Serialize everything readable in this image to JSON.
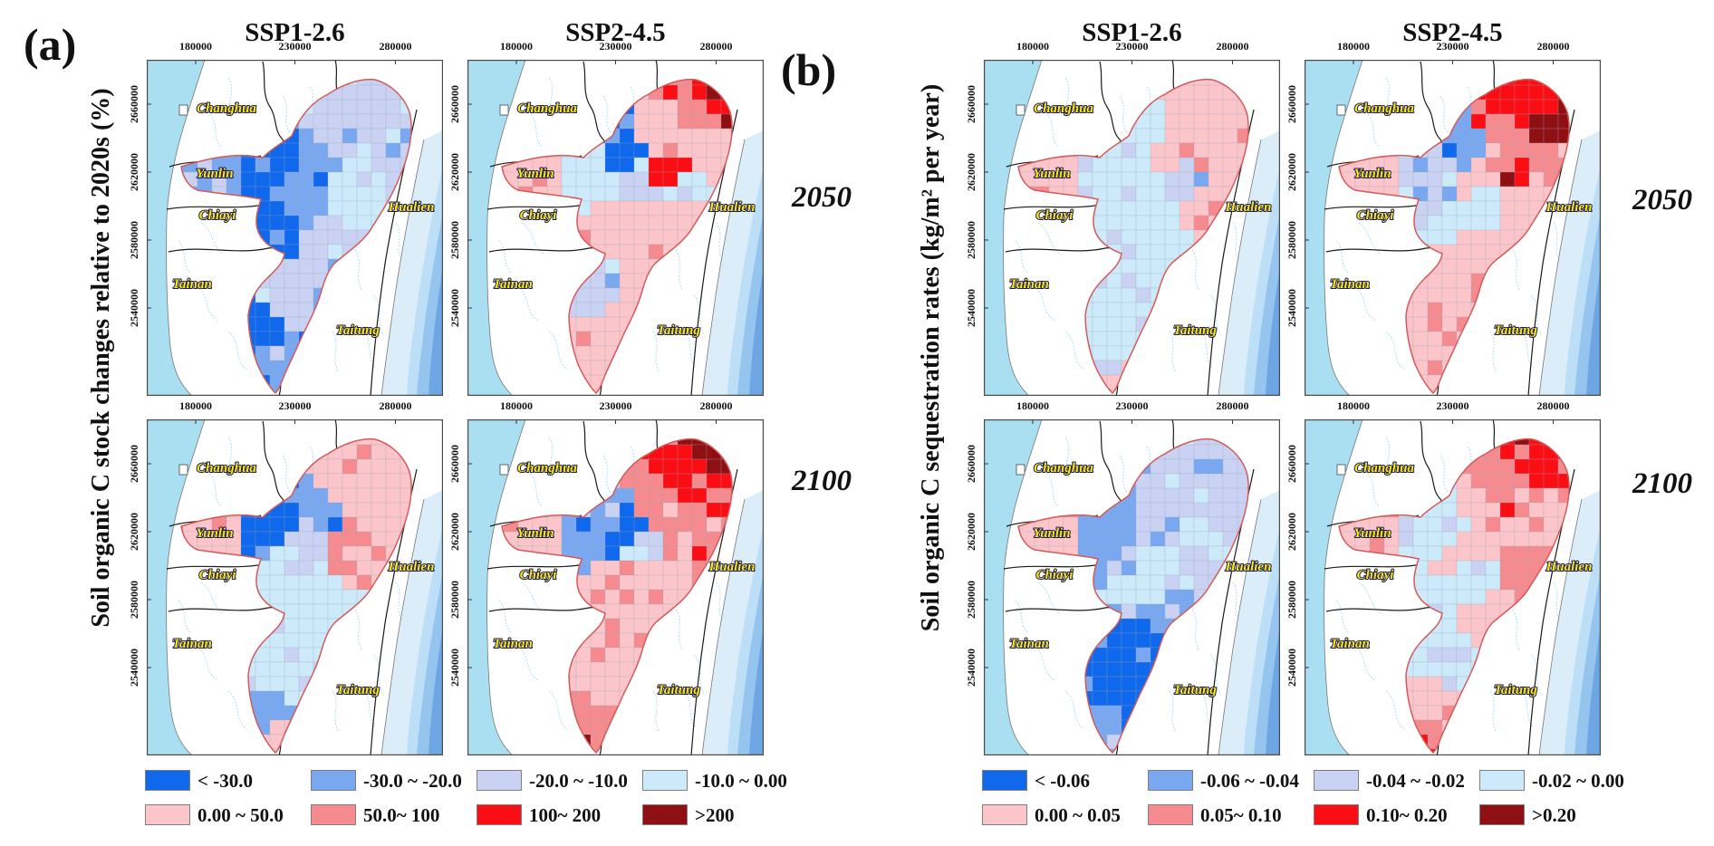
{
  "figure": {
    "panel_a": {
      "label": "(a)",
      "axis_title": "Soil organic C stock changes relative to 2020s (%)",
      "column_titles": [
        "SSP1-2.6",
        "SSP2-4.5"
      ],
      "row_labels": [
        "2050",
        "2100"
      ],
      "legend": [
        {
          "label": "< -30.0",
          "color": "#1068ec"
        },
        {
          "label": "-30.0 ~ -20.0",
          "color": "#79a8f0"
        },
        {
          "label": "-20.0 ~ -10.0",
          "color": "#c9d2f2"
        },
        {
          "label": "-10.0 ~ 0.00",
          "color": "#cdeafa"
        },
        {
          "label": "0.00 ~ 50.0",
          "color": "#fbc5ca"
        },
        {
          "label": "50.0~ 100",
          "color": "#f58b8f"
        },
        {
          "label": "100~ 200",
          "color": "#fb0e13"
        },
        {
          "label": ">200",
          "color": "#8e1013"
        }
      ]
    },
    "panel_b": {
      "label": "(b)",
      "axis_title": "Soil organic C sequestration rates (kg/m² per year)",
      "column_titles": [
        "SSP1-2.6",
        "SSP2-4.5"
      ],
      "row_labels": [
        "2050",
        "2100"
      ],
      "legend": [
        {
          "label": "< -0.06",
          "color": "#1068ec"
        },
        {
          "label": "-0.06 ~ -0.04",
          "color": "#79a8f0"
        },
        {
          "label": "-0.04 ~ -0.02",
          "color": "#c9d2f2"
        },
        {
          "label": "-0.02 ~ 0.00",
          "color": "#cdeafa"
        },
        {
          "label": "0.00 ~ 0.05",
          "color": "#fbc5ca"
        },
        {
          "label": "0.05~ 0.10",
          "color": "#f58b8f"
        },
        {
          "label": "0.10~ 0.20",
          "color": "#fb0e13"
        },
        {
          "label": ">0.20",
          "color": "#8e1013"
        }
      ]
    },
    "map_common": {
      "x_ticks": [
        "180000",
        "230000",
        "280000"
      ],
      "y_ticks": [
        "2660000",
        "2620000",
        "2580000",
        "2540000"
      ],
      "region_labels": [
        "Changhua",
        "Yunlin",
        "Chiayi",
        "Hualien",
        "Tainan",
        "Taitung"
      ]
    },
    "palette": [
      "#1068ec",
      "#79a8f0",
      "#c9d2f2",
      "#cdeafa",
      "#fbc5ca",
      "#f58b8f",
      "#fb0e13",
      "#8e1013"
    ],
    "colors": {
      "sea_west": "#a9dff1",
      "sea_east_bands": [
        "#dcedfa",
        "#bcdef6",
        "#95c5ef",
        "#6ea5e3"
      ],
      "river": "#8fd2f2",
      "county_boundary": "#1a1a1a",
      "watershed_outline": "#d45a5a",
      "region_label_fill": "#ffec00",
      "region_label_outline": "#16166b",
      "cell_border": "#9aa7b8",
      "frame": "#4a4a4a"
    },
    "maps": [
      {
        "panel": "a",
        "col": 0,
        "row": 0,
        "scenario": "SSP1-2.6",
        "year": "2050",
        "zones": [
          [
            60,
            128,
            1
          ],
          [
            150,
            118,
            0
          ],
          [
            135,
            178,
            0
          ],
          [
            185,
            118,
            1
          ],
          [
            215,
            88,
            2
          ],
          [
            248,
            48,
            2
          ],
          [
            268,
            108,
            2
          ],
          [
            238,
            158,
            3
          ],
          [
            205,
            198,
            2
          ],
          [
            195,
            245,
            2
          ],
          [
            160,
            270,
            2
          ],
          [
            138,
            300,
            0
          ],
          [
            142,
            345,
            1
          ],
          [
            172,
            140,
            1
          ],
          [
            230,
            130,
            3
          ]
        ]
      },
      {
        "panel": "a",
        "col": 1,
        "row": 0,
        "scenario": "SSP2-4.5",
        "year": "2050",
        "zones": [
          [
            60,
            128,
            4
          ],
          [
            148,
            118,
            3
          ],
          [
            166,
            106,
            0
          ],
          [
            188,
            130,
            2
          ],
          [
            220,
            88,
            4
          ],
          [
            252,
            50,
            5
          ],
          [
            264,
            44,
            6
          ],
          [
            266,
            112,
            4
          ],
          [
            232,
            168,
            4
          ],
          [
            198,
            248,
            4
          ],
          [
            148,
            298,
            4
          ],
          [
            134,
            262,
            2
          ],
          [
            242,
            140,
            3
          ],
          [
            224,
            124,
            6
          ],
          [
            142,
            350,
            4
          ],
          [
            180,
            180,
            4
          ]
        ]
      },
      {
        "panel": "a",
        "col": 0,
        "row": 1,
        "scenario": "SSP1-2.6",
        "year": "2100",
        "zones": [
          [
            60,
            128,
            4
          ],
          [
            150,
            114,
            0
          ],
          [
            176,
            130,
            2
          ],
          [
            196,
            114,
            1
          ],
          [
            230,
            80,
            4
          ],
          [
            258,
            44,
            4
          ],
          [
            270,
            110,
            4
          ],
          [
            240,
            160,
            4
          ],
          [
            205,
            200,
            3
          ],
          [
            190,
            250,
            3
          ],
          [
            152,
            282,
            3
          ],
          [
            130,
            320,
            1
          ],
          [
            146,
            352,
            4
          ],
          [
            162,
            176,
            3
          ],
          [
            216,
            140,
            5
          ]
        ]
      },
      {
        "panel": "a",
        "col": 1,
        "row": 1,
        "scenario": "SSP2-4.5",
        "year": "2100",
        "zones": [
          [
            60,
            128,
            4
          ],
          [
            150,
            115,
            1
          ],
          [
            170,
            125,
            0
          ],
          [
            186,
            142,
            2
          ],
          [
            216,
            94,
            5
          ],
          [
            246,
            58,
            6
          ],
          [
            262,
            82,
            6
          ],
          [
            268,
            40,
            7
          ],
          [
            250,
            120,
            5
          ],
          [
            232,
            166,
            4
          ],
          [
            200,
            240,
            4
          ],
          [
            156,
            290,
            4
          ],
          [
            140,
            330,
            5
          ],
          [
            146,
            362,
            6
          ],
          [
            180,
            180,
            4
          ]
        ]
      },
      {
        "panel": "b",
        "col": 0,
        "row": 0,
        "scenario": "SSP1-2.6",
        "year": "2050",
        "zones": [
          [
            60,
            128,
            4
          ],
          [
            150,
            120,
            3
          ],
          [
            180,
            150,
            3
          ],
          [
            202,
            110,
            4
          ],
          [
            240,
            68,
            4
          ],
          [
            266,
            110,
            4
          ],
          [
            250,
            160,
            4
          ],
          [
            200,
            230,
            3
          ],
          [
            160,
            280,
            3
          ],
          [
            140,
            330,
            3
          ],
          [
            216,
            130,
            2
          ],
          [
            172,
            95,
            3
          ],
          [
            145,
            355,
            4
          ]
        ]
      },
      {
        "panel": "b",
        "col": 1,
        "row": 0,
        "scenario": "SSP2-4.5",
        "year": "2050",
        "zones": [
          [
            60,
            128,
            4
          ],
          [
            155,
            120,
            2
          ],
          [
            170,
            110,
            1
          ],
          [
            186,
            136,
            4
          ],
          [
            226,
            90,
            5
          ],
          [
            252,
            55,
            6
          ],
          [
            263,
            76,
            7
          ],
          [
            268,
            110,
            5
          ],
          [
            240,
            150,
            4
          ],
          [
            205,
            220,
            4
          ],
          [
            160,
            280,
            4
          ],
          [
            140,
            330,
            4
          ],
          [
            196,
            160,
            3
          ],
          [
            231,
            126,
            6
          ]
        ]
      },
      {
        "panel": "b",
        "col": 0,
        "row": 1,
        "scenario": "SSP1-2.6",
        "year": "2100",
        "zones": [
          [
            60,
            128,
            4
          ],
          [
            150,
            124,
            1
          ],
          [
            176,
            140,
            2
          ],
          [
            200,
            110,
            2
          ],
          [
            235,
            75,
            2
          ],
          [
            262,
            50,
            2
          ],
          [
            268,
            110,
            2
          ],
          [
            240,
            165,
            2
          ],
          [
            205,
            215,
            1
          ],
          [
            175,
            255,
            0
          ],
          [
            150,
            300,
            0
          ],
          [
            135,
            340,
            1
          ],
          [
            162,
            318,
            0
          ],
          [
            190,
            175,
            3
          ],
          [
            255,
            140,
            3
          ]
        ]
      },
      {
        "panel": "b",
        "col": 1,
        "row": 1,
        "scenario": "SSP2-4.5",
        "year": "2100",
        "zones": [
          [
            60,
            128,
            4
          ],
          [
            155,
            125,
            3
          ],
          [
            176,
            140,
            4
          ],
          [
            200,
            115,
            4
          ],
          [
            235,
            80,
            5
          ],
          [
            258,
            50,
            6
          ],
          [
            268,
            105,
            4
          ],
          [
            240,
            160,
            5
          ],
          [
            205,
            220,
            4
          ],
          [
            165,
            270,
            3
          ],
          [
            145,
            320,
            4
          ],
          [
            186,
            180,
            3
          ],
          [
            222,
            135,
            4
          ],
          [
            148,
            355,
            5
          ]
        ]
      }
    ]
  }
}
